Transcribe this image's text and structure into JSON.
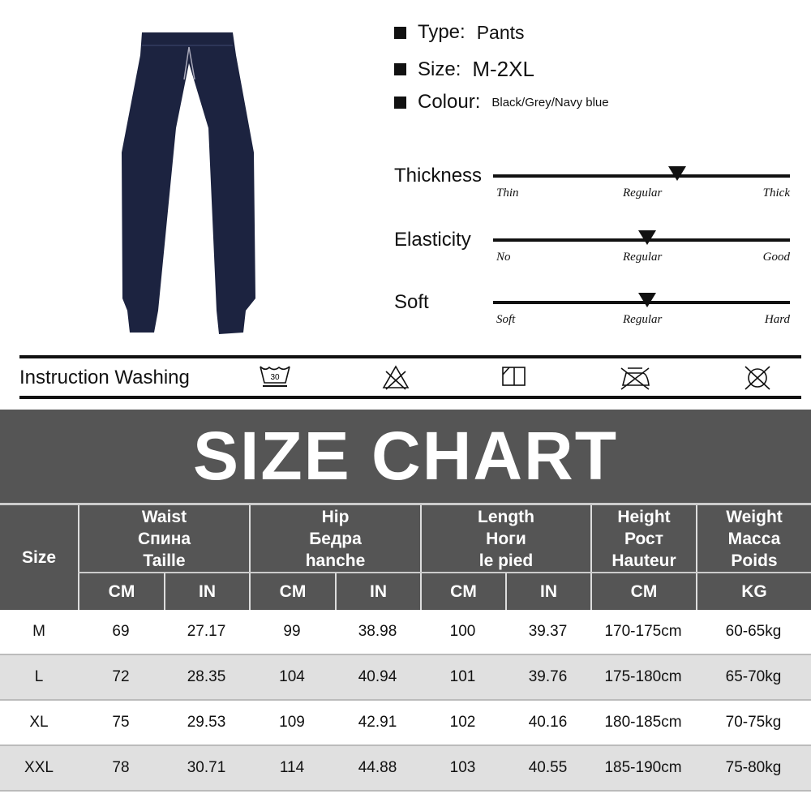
{
  "specs": [
    {
      "label": "Type:",
      "value": "Pants"
    },
    {
      "label": "Size:",
      "value": "M-2XL"
    },
    {
      "label": "Colour:",
      "value": "Black/Grey/Navy blue"
    }
  ],
  "attributes": [
    {
      "name": "Thickness",
      "low": "Thin",
      "mid": "Regular",
      "high": "Thick",
      "level": 0.62
    },
    {
      "name": "Elasticity",
      "low": "No",
      "mid": "Regular",
      "high": "Good",
      "level": 0.52
    },
    {
      "name": "Soft",
      "low": "Soft",
      "mid": "Regular",
      "high": "Hard",
      "level": 0.52
    }
  ],
  "washing": {
    "label": "Instruction Washing",
    "icons": [
      "wash-30-icon",
      "do-not-bleach-icon",
      "line-dry-icon",
      "do-not-iron-icon",
      "do-not-tumble-dry-icon"
    ],
    "wash_temp": "30"
  },
  "product_color": "#1c2340",
  "size_chart": {
    "title": "SIZE CHART",
    "size_header": "Size",
    "groups": [
      {
        "lines": [
          "Waist",
          "Спина",
          "Taille"
        ],
        "units": [
          "CM",
          "IN"
        ]
      },
      {
        "lines": [
          "Hip",
          "Бедра",
          "hanche"
        ],
        "units": [
          "CM",
          "IN"
        ]
      },
      {
        "lines": [
          "Length",
          "Ноги",
          "le pied"
        ],
        "units": [
          "CM",
          "IN"
        ]
      },
      {
        "lines": [
          "Height",
          "Рост",
          "Hauteur"
        ],
        "units": [
          "CM"
        ]
      },
      {
        "lines": [
          "Weight",
          "Масса",
          "Poids"
        ],
        "units": [
          "KG"
        ]
      }
    ],
    "rows": [
      [
        "M",
        "69",
        "27.17",
        "99",
        "38.98",
        "100",
        "39.37",
        "170-175cm",
        "60-65kg"
      ],
      [
        "L",
        "72",
        "28.35",
        "104",
        "40.94",
        "101",
        "39.76",
        "175-180cm",
        "65-70kg"
      ],
      [
        "XL",
        "75",
        "29.53",
        "109",
        "42.91",
        "102",
        "40.16",
        "180-185cm",
        "70-75kg"
      ],
      [
        "XXL",
        "78",
        "30.71",
        "114",
        "44.88",
        "103",
        "40.55",
        "185-190cm",
        "75-80kg"
      ]
    ]
  }
}
